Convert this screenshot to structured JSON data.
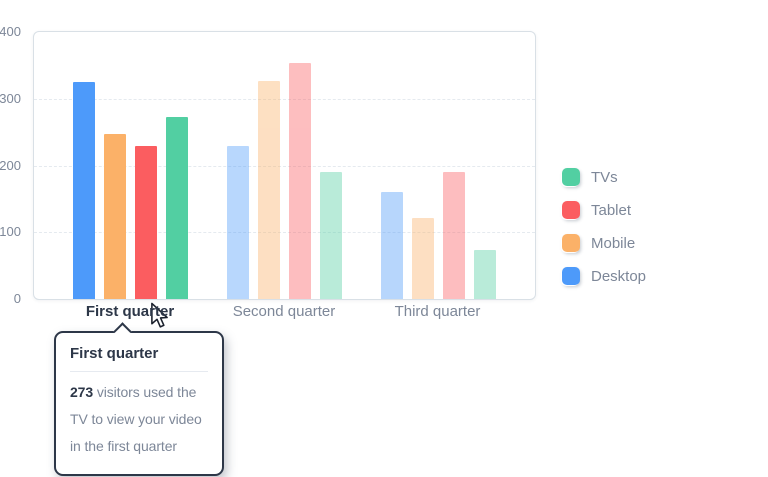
{
  "chart_data": {
    "type": "bar",
    "title": "",
    "categories": [
      "First quarter",
      "Second quarter",
      "Third quarter"
    ],
    "series": [
      {
        "name": "Desktop",
        "color": "#4D9AFA",
        "values": [
          325,
          230,
          160
        ]
      },
      {
        "name": "Mobile",
        "color": "#FBB168",
        "values": [
          248,
          327,
          122
        ]
      },
      {
        "name": "Tablet",
        "color": "#FB5D60",
        "values": [
          230,
          354,
          190
        ]
      },
      {
        "name": "TVs",
        "color": "#52CFA2",
        "values": [
          273,
          190,
          73
        ]
      }
    ],
    "ylim": [
      0,
      400
    ],
    "yticks": [
      0,
      100,
      200,
      300,
      400
    ],
    "grid": "horizontal-dashed",
    "legend_position": "right",
    "highlighted_category": "First quarter"
  },
  "legend": {
    "items": [
      {
        "label": "TVs",
        "color": "#52CFA2"
      },
      {
        "label": "Tablet",
        "color": "#FB5D60"
      },
      {
        "label": "Mobile",
        "color": "#FBB168"
      },
      {
        "label": "Desktop",
        "color": "#4D9AFA"
      }
    ]
  },
  "tooltip": {
    "title": "First quarter",
    "value": "273",
    "body_rest": " visitors used the TV to view your video in the first quarter"
  },
  "colors": {
    "highlight_text": "#2d3748",
    "muted_text": "#7d8798",
    "grid": "#e5eaef",
    "card_border": "#d9e0e6",
    "tooltip_border": "#2d3748"
  }
}
